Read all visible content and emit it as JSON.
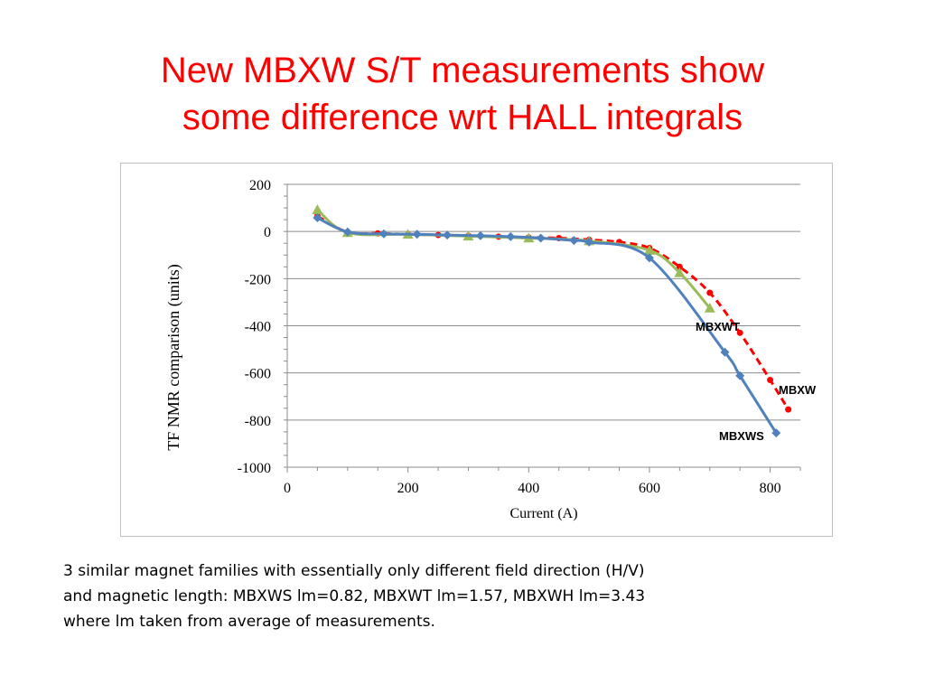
{
  "title": {
    "line1": "New MBXW S/T measurements show",
    "line2": "some difference wrt HALL integrals"
  },
  "caption": {
    "line1": "3 similar magnet families with essentially only different field direction (H/V)",
    "line2": "and magnetic length: MBXWS lm=0.82, MBXWT lm=1.57, MBXWH lm=3.43",
    "line3": "where lm taken from average of measurements."
  },
  "colors": {
    "title": "#ff0000",
    "mbxws": "#4f81bd",
    "mbxwt": "#9bbb59",
    "mbxw": "#ff0000",
    "grid": "#8c8c8c"
  },
  "chart_data": {
    "type": "line",
    "xlabel": "Current (A)",
    "ylabel": "TF NMR comparison (units)",
    "xlim": [
      0,
      850
    ],
    "ylim": [
      -1000,
      200
    ],
    "xticks": [
      0,
      200,
      400,
      600,
      800
    ],
    "yticks": [
      200,
      0,
      -200,
      -400,
      -600,
      -800,
      -1000
    ],
    "grid": "horizontal",
    "legend": "none",
    "series": [
      {
        "name": "MBXW",
        "color": "#ff0000",
        "style": "dashed",
        "marker": "circle",
        "x": [
          50,
          100,
          150,
          200,
          250,
          300,
          350,
          400,
          450,
          500,
          550,
          600,
          650,
          700,
          750,
          800,
          830
        ],
        "y": [
          65,
          -3,
          -8,
          -12,
          -15,
          -18,
          -22,
          -25,
          -28,
          -35,
          -45,
          -70,
          -150,
          -260,
          -430,
          -630,
          -755
        ]
      },
      {
        "name": "MBXWT",
        "color": "#9bbb59",
        "style": "solid",
        "marker": "triangle",
        "x": [
          50,
          100,
          200,
          300,
          400,
          500,
          600,
          650,
          700
        ],
        "y": [
          92,
          -5,
          -12,
          -20,
          -28,
          -40,
          -80,
          -175,
          -325
        ]
      },
      {
        "name": "MBXWS",
        "color": "#4f81bd",
        "style": "solid",
        "marker": "diamond",
        "x": [
          50,
          100,
          160,
          215,
          265,
          320,
          370,
          420,
          475,
          500,
          600,
          725,
          750,
          810
        ],
        "y": [
          58,
          -2,
          -10,
          -12,
          -15,
          -18,
          -22,
          -28,
          -38,
          -45,
          -112,
          -512,
          -612,
          -855
        ]
      }
    ],
    "annotations": [
      {
        "text": "MBXWT",
        "series": "MBXWT"
      },
      {
        "text": "MBXW",
        "series": "MBXW"
      },
      {
        "text": "MBXWS",
        "series": "MBXWS"
      }
    ]
  }
}
